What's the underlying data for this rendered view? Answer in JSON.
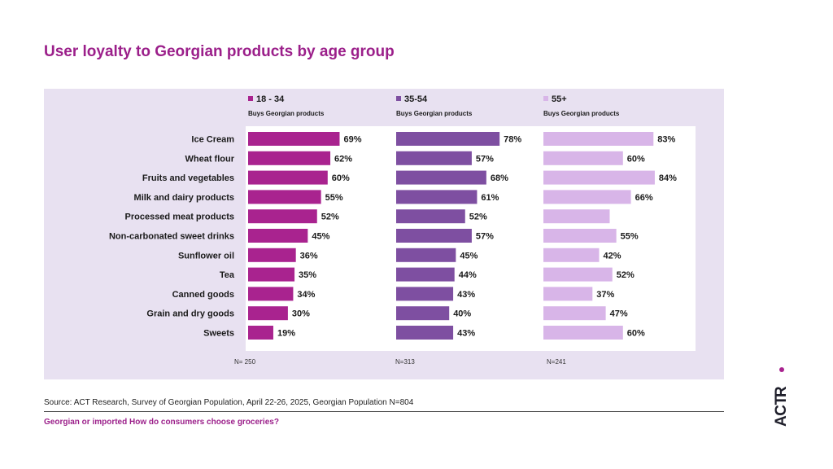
{
  "title": "User loyalty to Georgian products by age group",
  "source": "Source: ACT Research, Survey of Georgian Population, April 22-26, 2025, Georgian Population N=804",
  "footer": "Georgian or imported How do consumers choose groceries?",
  "logo_text": "ACT R.",
  "chart_data": {
    "type": "bar",
    "orientation": "horizontal",
    "categories": [
      "Ice Cream",
      "Wheat flour",
      "Fruits and vegetables",
      "Milk and dairy products",
      "Processed meat products",
      "Non-carbonated sweet drinks",
      "Sunflower oil",
      "Tea",
      "Canned goods",
      "Grain and dry goods",
      "Sweets"
    ],
    "series": [
      {
        "name": "18 - 34",
        "subtitle": "Buys Georgian products",
        "n": "N= 250",
        "color": "#a9238f",
        "values": [
          69,
          62,
          60,
          55,
          52,
          45,
          36,
          35,
          34,
          30,
          19
        ],
        "labels": [
          "69%",
          "62%",
          "60%",
          "55%",
          "52%",
          "45%",
          "36%",
          "35%",
          "34%",
          "30%",
          "19%"
        ]
      },
      {
        "name": "35-54",
        "subtitle": "Buys Georgian products",
        "n": "N=313",
        "color": "#7e4fa1",
        "values": [
          78,
          57,
          68,
          61,
          52,
          57,
          45,
          44,
          43,
          40,
          43
        ],
        "labels": [
          "78%",
          "57%",
          "68%",
          "61%",
          "52%",
          "57%",
          "45%",
          "44%",
          "43%",
          "40%",
          "43%"
        ]
      },
      {
        "name": "55+",
        "subtitle": "Buys Georgian products",
        "n": "N=241",
        "color": "#d8b5e8",
        "values": [
          83,
          60,
          84,
          66,
          50,
          55,
          42,
          52,
          37,
          47,
          60
        ],
        "labels": [
          "83%",
          "60%",
          "84%",
          "66%",
          "",
          "55%",
          "42%",
          "52%",
          "37%",
          "47%",
          "60%"
        ]
      }
    ]
  }
}
